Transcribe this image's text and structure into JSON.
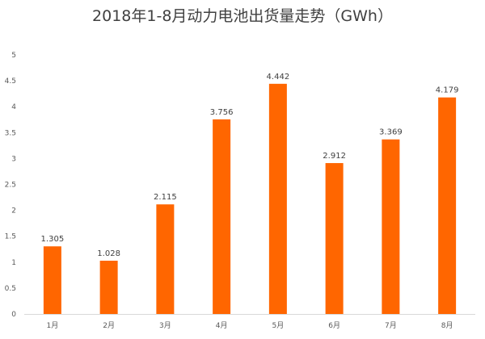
{
  "chart_data": {
    "type": "bar",
    "title": "2018年1-8月动力电池出货量走势（GWh）",
    "categories": [
      "1月",
      "2月",
      "3月",
      "4月",
      "5月",
      "6月",
      "7月",
      "8月"
    ],
    "values": [
      1.305,
      1.028,
      2.115,
      3.756,
      4.442,
      2.912,
      3.369,
      4.179
    ],
    "data_labels": [
      "1.305",
      "1.028",
      "2.115",
      "3.756",
      "4.442",
      "2.912",
      "3.369",
      "4.179"
    ],
    "ylim": [
      0,
      5
    ],
    "yticks": [
      "0",
      "0.5",
      "1",
      "1.5",
      "2",
      "2.5",
      "3",
      "3.5",
      "4",
      "4.5",
      "5"
    ],
    "grid": false,
    "legend": "none",
    "bar_color": "#FF6600"
  }
}
